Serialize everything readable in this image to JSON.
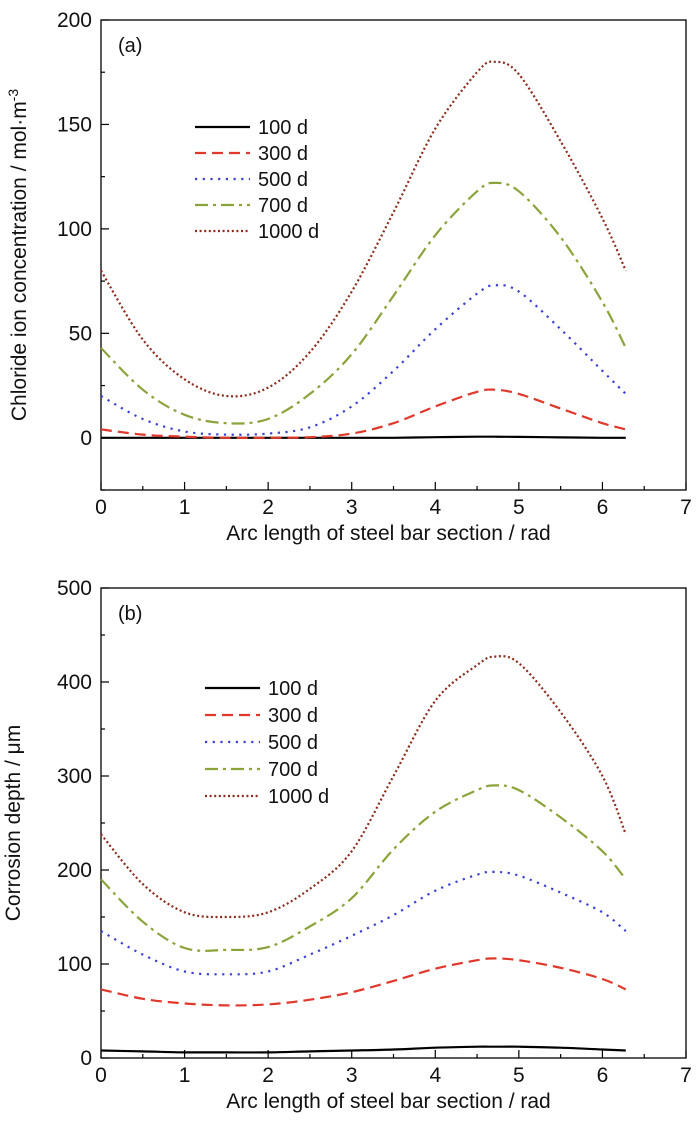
{
  "chart_data": [
    {
      "type": "line",
      "panel_label": "(a)",
      "xlabel": "Arc length of steel bar section / rad",
      "ylabel": "Chloride ion concentration / mol·m",
      "ylabel_sup": "-3",
      "xlim": [
        0,
        7
      ],
      "ylim": [
        -25,
        200
      ],
      "xticks": [
        0,
        1,
        2,
        3,
        4,
        5,
        6,
        7
      ],
      "yticks": [
        0,
        50,
        100,
        150,
        200
      ],
      "xtick_labels": [
        "0",
        "1",
        "2",
        "3",
        "4",
        "5",
        "6",
        "7"
      ],
      "ytick_labels": [
        "0",
        "50",
        "100",
        "150",
        "200"
      ],
      "legend_position": "upper-left",
      "series": [
        {
          "name": "100 d",
          "style": "solid",
          "color": "#000000",
          "x": [
            0,
            0.5,
            1,
            1.5,
            2,
            2.5,
            3,
            3.5,
            4,
            4.5,
            4.71,
            5,
            5.5,
            6,
            6.28
          ],
          "y": [
            0,
            0,
            0,
            0,
            0,
            0,
            0,
            0,
            0.3,
            0.5,
            0.5,
            0.4,
            0.2,
            0,
            0
          ]
        },
        {
          "name": "300 d",
          "style": "dash",
          "color": "#e0382b",
          "x": [
            0,
            0.5,
            1,
            1.5,
            2,
            2.5,
            3,
            3.5,
            4,
            4.5,
            4.71,
            5,
            5.5,
            6,
            6.28
          ],
          "y": [
            4,
            1.5,
            0.5,
            0,
            0,
            0.3,
            2,
            7,
            15,
            22,
            23,
            21,
            14,
            7,
            4
          ]
        },
        {
          "name": "500 d",
          "style": "dot",
          "color": "#3a3fd6",
          "x": [
            0,
            0.5,
            1,
            1.5,
            2,
            2.5,
            3,
            3.5,
            4,
            4.5,
            4.71,
            5,
            5.5,
            6,
            6.28
          ],
          "y": [
            20,
            9,
            3,
            1.5,
            2,
            5,
            15,
            32,
            52,
            69,
            73,
            70,
            52,
            32,
            21
          ]
        },
        {
          "name": "700 d",
          "style": "dashdot",
          "color": "#8aa33a",
          "x": [
            0,
            0.5,
            1,
            1.5,
            2,
            2.5,
            3,
            3.5,
            4,
            4.5,
            4.71,
            5,
            5.5,
            6,
            6.28
          ],
          "y": [
            43,
            23,
            11,
            7,
            9,
            21,
            40,
            68,
            97,
            118,
            122,
            118,
            96,
            65,
            43
          ]
        },
        {
          "name": "1000 d",
          "style": "dense-dot",
          "color": "#8c2a1c",
          "x": [
            0,
            0.5,
            1,
            1.5,
            2,
            2.5,
            3,
            3.5,
            4,
            4.5,
            4.71,
            5,
            5.5,
            6,
            6.28
          ],
          "y": [
            80,
            47,
            28,
            20,
            24,
            41,
            70,
            108,
            148,
            175,
            180,
            174,
            142,
            105,
            80
          ]
        }
      ]
    },
    {
      "type": "line",
      "panel_label": "(b)",
      "xlabel": "Arc length of steel bar section / rad",
      "ylabel": "Corrosion depth / μm",
      "ylabel_sup": "",
      "xlim": [
        0,
        7
      ],
      "ylim": [
        0,
        500
      ],
      "xticks": [
        0,
        1,
        2,
        3,
        4,
        5,
        6,
        7
      ],
      "yticks": [
        0,
        100,
        200,
        300,
        400,
        500
      ],
      "xtick_labels": [
        "0",
        "1",
        "2",
        "3",
        "4",
        "5",
        "6",
        "7"
      ],
      "ytick_labels": [
        "0",
        "100",
        "200",
        "300",
        "400",
        "500"
      ],
      "legend_position": "upper-left",
      "series": [
        {
          "name": "100 d",
          "style": "solid",
          "color": "#000000",
          "x": [
            0,
            0.5,
            1,
            1.5,
            2,
            2.5,
            3,
            3.5,
            4,
            4.5,
            4.71,
            5,
            5.5,
            6,
            6.28
          ],
          "y": [
            8,
            7,
            6,
            6,
            6,
            7,
            8,
            9,
            11,
            12,
            12,
            12,
            11,
            9,
            8
          ]
        },
        {
          "name": "300 d",
          "style": "dash",
          "color": "#e0382b",
          "x": [
            0,
            0.5,
            1,
            1.5,
            2,
            2.5,
            3,
            3.5,
            4,
            4.5,
            4.71,
            5,
            5.5,
            6,
            6.28
          ],
          "y": [
            73,
            63,
            58,
            56,
            57,
            62,
            70,
            82,
            95,
            104,
            106,
            104,
            96,
            84,
            73
          ]
        },
        {
          "name": "500 d",
          "style": "dot",
          "color": "#3a3fd6",
          "x": [
            0,
            0.5,
            1,
            1.5,
            2,
            2.5,
            3,
            3.5,
            4,
            4.5,
            4.71,
            5,
            5.5,
            6,
            6.28
          ],
          "y": [
            135,
            110,
            92,
            89,
            92,
            110,
            130,
            152,
            178,
            195,
            198,
            194,
            176,
            155,
            135
          ]
        },
        {
          "name": "700 d",
          "style": "dashdot",
          "color": "#8aa33a",
          "x": [
            0,
            0.5,
            1,
            1.5,
            2,
            2.5,
            3,
            3.5,
            4,
            4.5,
            4.71,
            5,
            5.5,
            6,
            6.28
          ],
          "y": [
            190,
            145,
            117,
            115,
            118,
            140,
            170,
            222,
            262,
            285,
            290,
            285,
            256,
            220,
            190
          ]
        },
        {
          "name": "1000 d",
          "style": "dense-dot",
          "color": "#8c2a1c",
          "x": [
            0,
            0.5,
            1,
            1.5,
            2,
            2.5,
            3,
            3.5,
            4,
            4.5,
            4.71,
            5,
            5.5,
            6,
            6.28
          ],
          "y": [
            238,
            185,
            155,
            150,
            155,
            180,
            220,
            300,
            380,
            418,
            427,
            420,
            368,
            300,
            238
          ]
        }
      ]
    }
  ]
}
